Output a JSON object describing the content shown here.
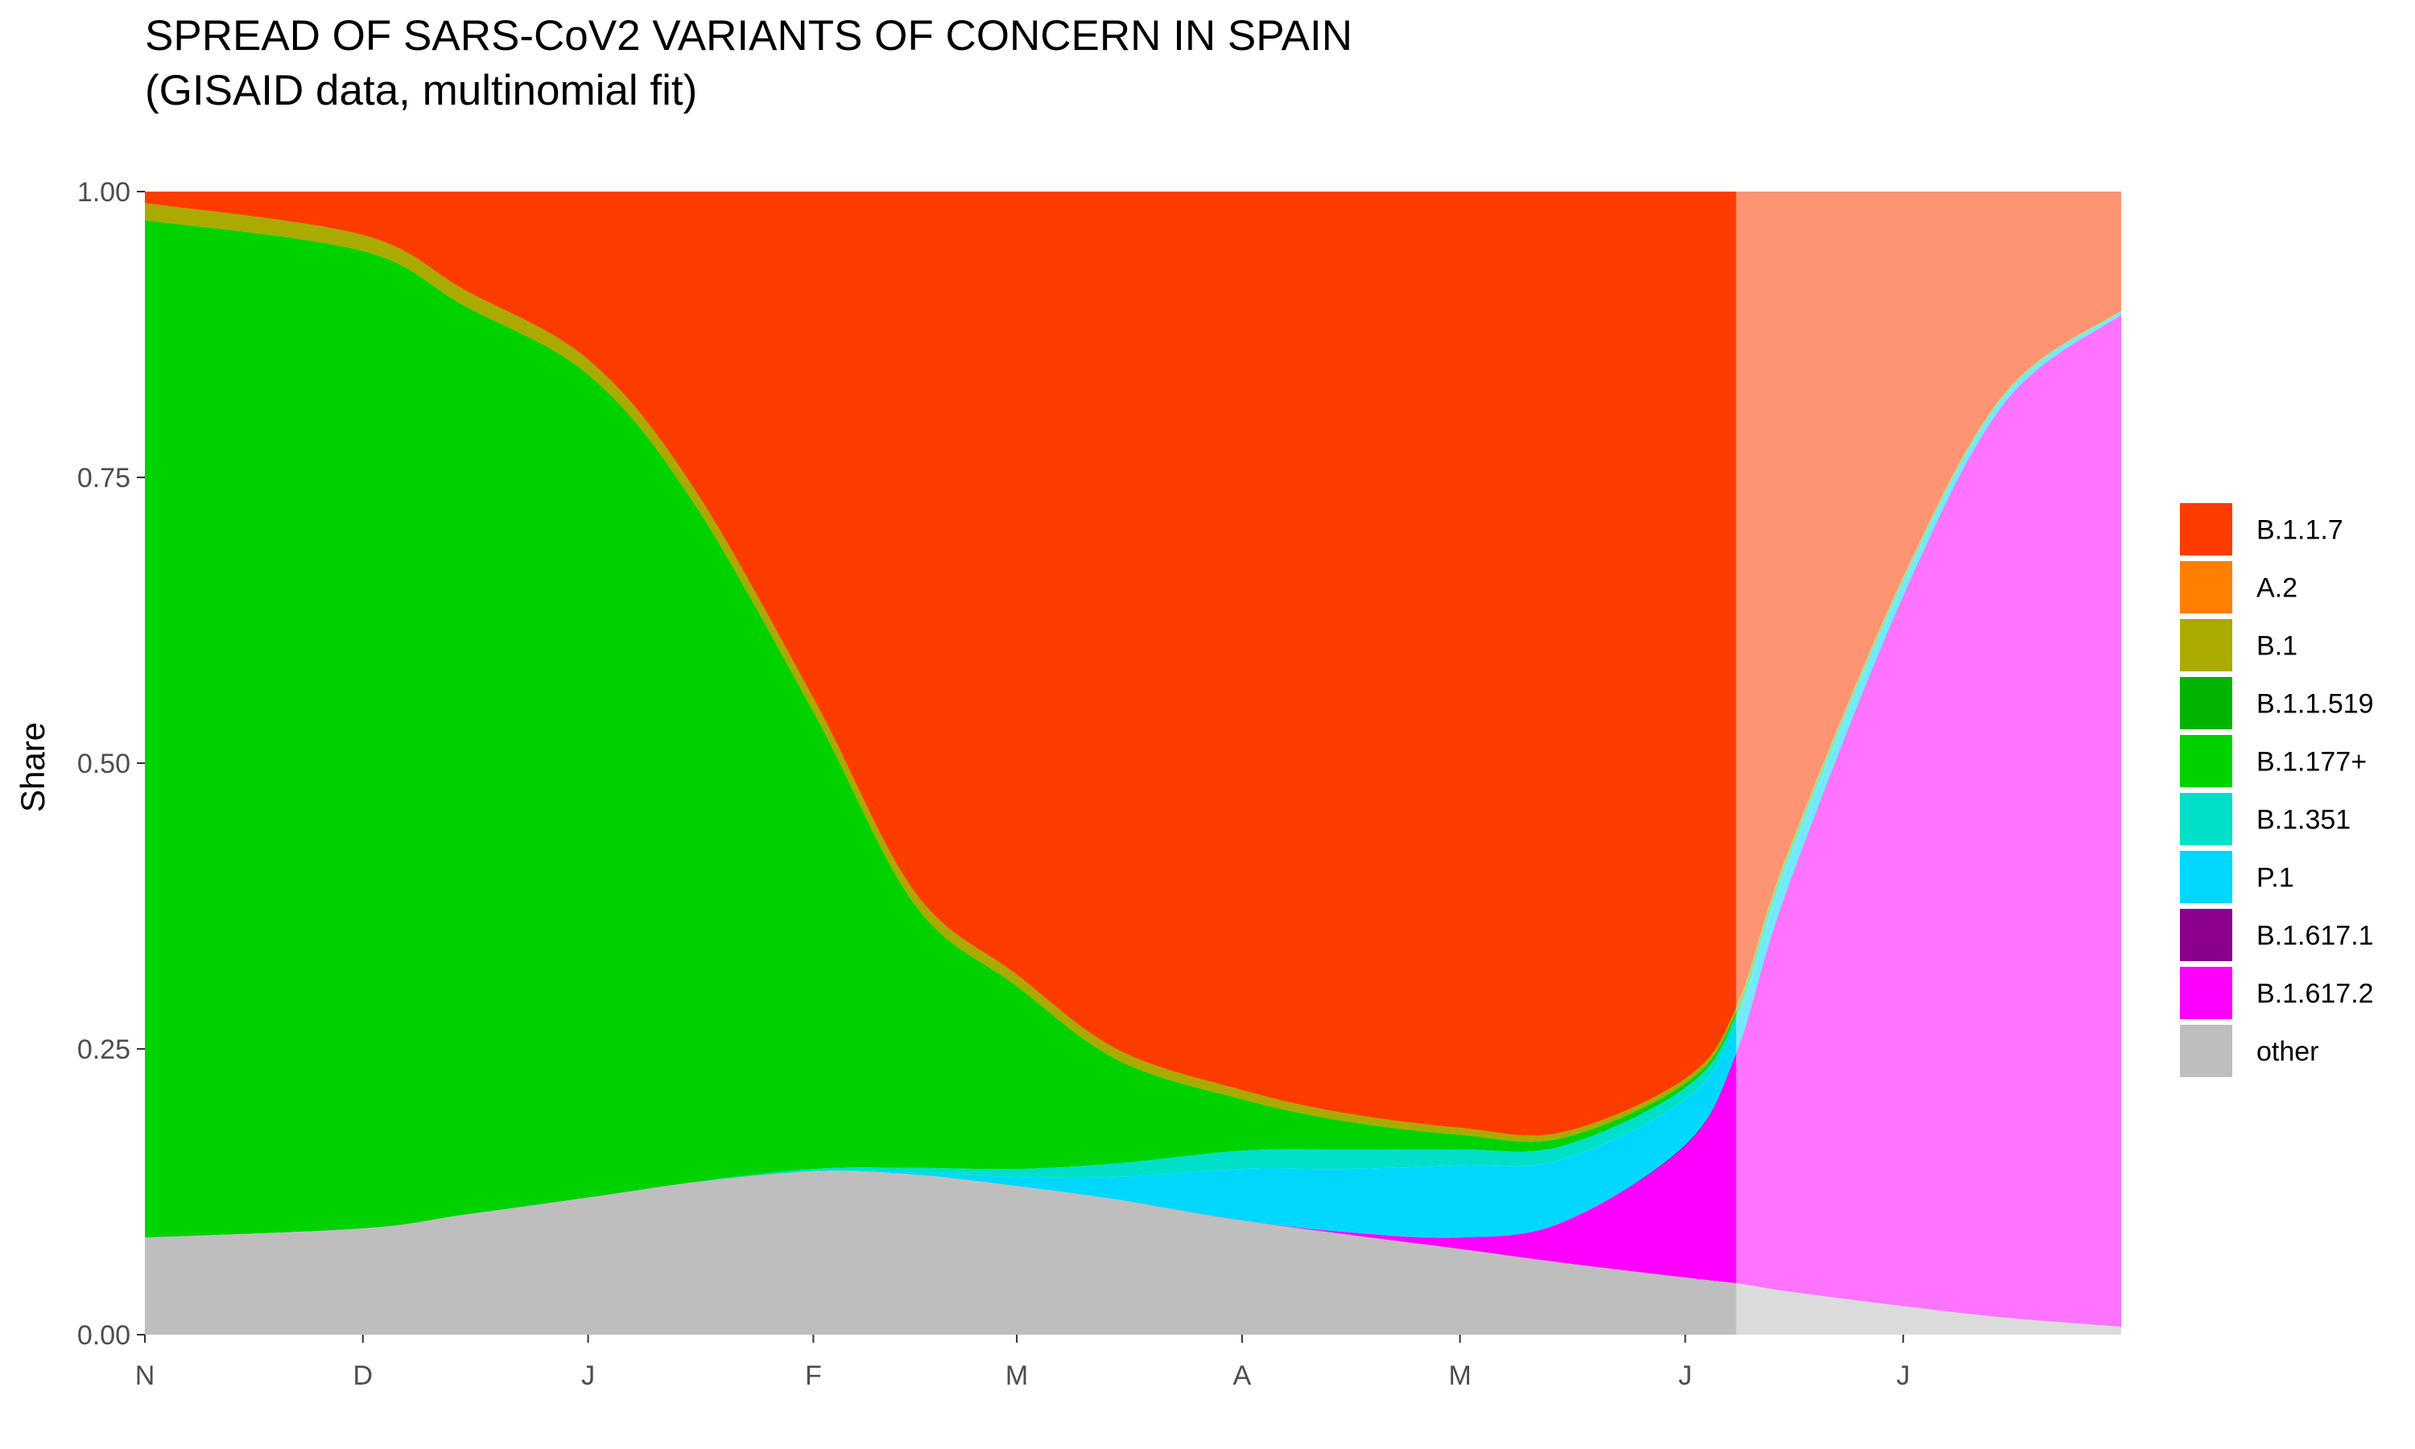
{
  "chart_data": {
    "type": "area",
    "stacked": true,
    "title": "SPREAD OF SARS-CoV2 VARIANTS OF CONCERN IN SPAIN",
    "subtitle": "(GISAID data, multinomial fit)",
    "xlabel": "",
    "ylabel": "Share",
    "ylim": [
      0,
      1
    ],
    "yticks": [
      "0.00",
      "0.25",
      "0.50",
      "0.75",
      "1.00"
    ],
    "xticks": [
      {
        "label": "N",
        "date": "2020-11-01"
      },
      {
        "label": "D",
        "date": "2020-12-01"
      },
      {
        "label": "J",
        "date": "2021-01-01"
      },
      {
        "label": "F",
        "date": "2021-02-01"
      },
      {
        "label": "M",
        "date": "2021-03-01"
      },
      {
        "label": "A",
        "date": "2021-04-01"
      },
      {
        "label": "M",
        "date": "2021-05-01"
      },
      {
        "label": "J",
        "date": "2021-06-01"
      },
      {
        "label": "J",
        "date": "2021-07-01"
      }
    ],
    "xlim": [
      "2020-11-01",
      "2021-07-31"
    ],
    "observed_data_end": "2021-06-08",
    "legend_position": "right",
    "x": [
      "2020-11-01",
      "2020-12-01",
      "2020-12-15",
      "2021-01-01",
      "2021-01-15",
      "2021-02-01",
      "2021-02-15",
      "2021-03-01",
      "2021-03-15",
      "2021-04-01",
      "2021-04-15",
      "2021-05-01",
      "2021-05-15",
      "2021-06-01",
      "2021-06-08",
      "2021-06-15",
      "2021-07-01",
      "2021-07-15",
      "2021-07-31"
    ],
    "series": [
      {
        "name": "other",
        "color": "#bebebe",
        "values": [
          0.085,
          0.093,
          0.105,
          0.12,
          0.133,
          0.143,
          0.14,
          0.13,
          0.118,
          0.1,
          0.088,
          0.075,
          0.063,
          0.05,
          0.045,
          0.038,
          0.025,
          0.015,
          0.007
        ]
      },
      {
        "name": "B.1.617.2",
        "color": "#ff00ff",
        "values": [
          0,
          0,
          0,
          0,
          0,
          0,
          0,
          0,
          0,
          0,
          0.002,
          0.01,
          0.035,
          0.115,
          0.2,
          0.35,
          0.62,
          0.8,
          0.885
        ]
      },
      {
        "name": "B.1.617.1",
        "color": "#8b008b",
        "values": [
          0,
          0,
          0,
          0,
          0,
          0,
          0,
          0,
          0,
          0,
          0,
          0,
          0,
          0.001,
          0.001,
          0.001,
          0.001,
          0.0005,
          0.0003
        ]
      },
      {
        "name": "P.1",
        "color": "#00d7ff",
        "values": [
          0,
          0,
          0,
          0,
          0,
          0,
          0.002,
          0.008,
          0.02,
          0.045,
          0.055,
          0.063,
          0.055,
          0.04,
          0.025,
          0.02,
          0.01,
          0.005,
          0.002
        ]
      },
      {
        "name": "B.1.351",
        "color": "#00e0c8",
        "values": [
          0,
          0,
          0,
          0,
          0,
          0.002,
          0.004,
          0.007,
          0.012,
          0.016,
          0.017,
          0.014,
          0.012,
          0.01,
          0.008,
          0.006,
          0.004,
          0.002,
          0.001
        ]
      },
      {
        "name": "B.1.177+",
        "color": "#00d200",
        "values": [
          0.89,
          0.855,
          0.795,
          0.72,
          0.6,
          0.4,
          0.23,
          0.16,
          0.09,
          0.045,
          0.025,
          0.013,
          0.007,
          0.004,
          0.003,
          0.002,
          0.001,
          0.0005,
          0.0002
        ]
      },
      {
        "name": "B.1.1.519",
        "color": "#00b400",
        "values": [
          0,
          0,
          0,
          0,
          0,
          0,
          0,
          0,
          0,
          0,
          0,
          0,
          0,
          0,
          0,
          0,
          0,
          0,
          0
        ]
      },
      {
        "name": "B.1",
        "color": "#aaaa00",
        "values": [
          0.015,
          0.014,
          0.014,
          0.013,
          0.013,
          0.012,
          0.011,
          0.01,
          0.009,
          0.008,
          0.007,
          0.006,
          0.005,
          0.004,
          0.004,
          0.003,
          0.002,
          0.001,
          0.0005
        ]
      },
      {
        "name": "A.2",
        "color": "#ff8000",
        "values": [
          0,
          0,
          0,
          0,
          0,
          0,
          0,
          0,
          0,
          0,
          0,
          0,
          0,
          0,
          0,
          0,
          0,
          0,
          0
        ]
      },
      {
        "name": "B.1.1.7",
        "color": "#ff3c00",
        "values": [
          0.01,
          0.038,
          0.086,
          0.147,
          0.254,
          0.443,
          0.613,
          0.685,
          0.751,
          0.786,
          0.806,
          0.819,
          0.823,
          0.776,
          0.714,
          0.58,
          0.337,
          0.176,
          0.104
        ]
      }
    ],
    "legend_order": [
      "B.1.1.7",
      "A.2",
      "B.1",
      "B.1.1.519",
      "B.1.177+",
      "B.1.351",
      "P.1",
      "B.1.617.1",
      "B.1.617.2",
      "other"
    ]
  }
}
